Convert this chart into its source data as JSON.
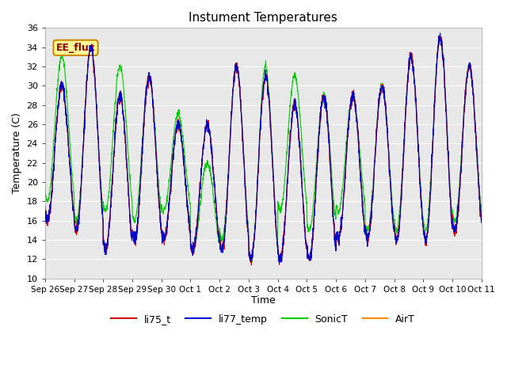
{
  "title": "Instument Temperatures",
  "ylabel": "Temperature (C)",
  "xlabel": "Time",
  "xlim_labels": [
    "Sep 26",
    "Sep 27",
    "Sep 28",
    "Sep 29",
    "Sep 30",
    "Oct 1",
    "Oct 2",
    "Oct 3",
    "Oct 4",
    "Oct 5",
    "Oct 6",
    "Oct 7",
    "Oct 8",
    "Oct 9",
    "Oct 10",
    "Oct 11"
  ],
  "ylim": [
    10,
    36
  ],
  "yticks": [
    10,
    12,
    14,
    16,
    18,
    20,
    22,
    24,
    26,
    28,
    30,
    32,
    34,
    36
  ],
  "colors": {
    "li75_t": "#cc0000",
    "li77_temp": "#0000cc",
    "SonicT": "#00cc00",
    "AirT": "#ff8800"
  },
  "annotation_text": "EE_flux",
  "annotation_color": "#880000",
  "annotation_bg": "#ffff99",
  "annotation_border": "#cc8800",
  "axes_bg": "#e8e8e8",
  "grid_color": "#ffffff",
  "day_peaks": [
    30,
    34,
    29,
    31,
    26,
    26,
    32,
    31,
    28,
    29,
    29,
    30,
    33,
    35,
    32,
    17
  ],
  "sonic_peaks": [
    33,
    34,
    32,
    31,
    27,
    22,
    32,
    32,
    31,
    29,
    29,
    30,
    33,
    35,
    32,
    21
  ],
  "day_mins": [
    16,
    15,
    13,
    14,
    14,
    13,
    13,
    12,
    12,
    12,
    14,
    14,
    14,
    14,
    15,
    17
  ],
  "sonic_mins": [
    18,
    16,
    17,
    16,
    17,
    13,
    14,
    12,
    17,
    15,
    17,
    15,
    15,
    15,
    16,
    17
  ],
  "n_days": 15,
  "ppd": 144
}
